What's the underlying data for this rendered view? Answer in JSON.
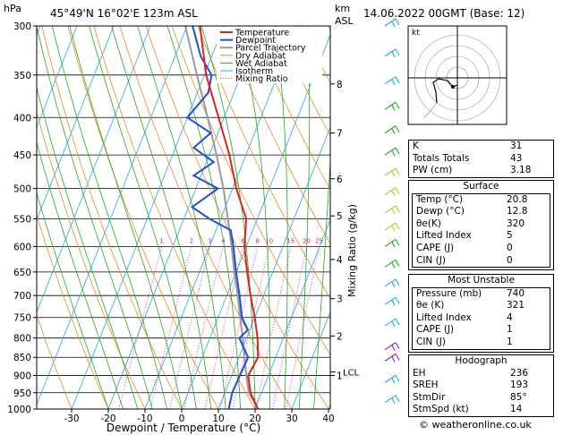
{
  "header": {
    "location": "45°49'N  16°02'E  123m  ASL",
    "datetime": "14.06.2022  00GMT  (Base: 12)",
    "hpa_label": "hPa",
    "km_label": "km",
    "asl_label": "ASL",
    "footer": "© weatheronline.co.uk"
  },
  "chart_data": {
    "type": "skew-t",
    "xlabel": "Dewpoint / Temperature (°C)",
    "ylabel_right": "Mixing Ratio (g/kg)",
    "x_ticks": [
      -30,
      -20,
      -10,
      0,
      10,
      20,
      30,
      40
    ],
    "pressure_ticks": [
      300,
      350,
      400,
      450,
      500,
      550,
      600,
      650,
      700,
      750,
      800,
      850,
      900,
      950,
      1000
    ],
    "km_ticks": [
      {
        "label": "8",
        "p": 360
      },
      {
        "label": "7",
        "p": 420
      },
      {
        "label": "6",
        "p": 485
      },
      {
        "label": "5",
        "p": 545
      },
      {
        "label": "4",
        "p": 625
      },
      {
        "label": "3",
        "p": 707
      },
      {
        "label": "2",
        "p": 795
      },
      {
        "label": "1",
        "p": 900
      }
    ],
    "lcl_label": "LCL",
    "lcl_pressure": 890,
    "mixing_ratio_labels": [
      "1",
      "2",
      "3",
      "4",
      "6",
      "8",
      "10",
      "15",
      "20",
      "25"
    ],
    "legend": [
      "Temperature",
      "Dewpoint",
      "Parcel Trajectory",
      "Dry Adiabat",
      "Wet Adiabat",
      "Isotherm",
      "Mixing Ratio"
    ],
    "colors": {
      "temperature": "#dd2222",
      "dewpoint": "#1f4fd8",
      "parcel": "#999999",
      "dry_adiabat": "#e39020",
      "wet_adiabat": "#22aa22",
      "isotherm": "#22aadd",
      "mixing_ratio": "#cc2288"
    },
    "temperature": [
      {
        "p": 1000,
        "t": 20.8
      },
      {
        "p": 950,
        "t": 17.0
      },
      {
        "p": 900,
        "t": 14.5
      },
      {
        "p": 850,
        "t": 15.2
      },
      {
        "p": 800,
        "t": 13.0
      },
      {
        "p": 750,
        "t": 10.0
      },
      {
        "p": 700,
        "t": 6.5
      },
      {
        "p": 650,
        "t": 3.0
      },
      {
        "p": 600,
        "t": -0.5
      },
      {
        "p": 550,
        "t": -3.0
      },
      {
        "p": 500,
        "t": -9.0
      },
      {
        "p": 450,
        "t": -14.5
      },
      {
        "p": 400,
        "t": -21.5
      },
      {
        "p": 350,
        "t": -29.5
      },
      {
        "p": 300,
        "t": -36.5
      }
    ],
    "dewpoint": [
      {
        "p": 1000,
        "t": 12.8
      },
      {
        "p": 950,
        "t": 12.0
      },
      {
        "p": 900,
        "t": 12.2
      },
      {
        "p": 850,
        "t": 12.5
      },
      {
        "p": 800,
        "t": 8.0
      },
      {
        "p": 780,
        "t": 9.5
      },
      {
        "p": 750,
        "t": 6.5
      },
      {
        "p": 700,
        "t": 3.5
      },
      {
        "p": 650,
        "t": 0.0
      },
      {
        "p": 600,
        "t": -3.5
      },
      {
        "p": 570,
        "t": -6.0
      },
      {
        "p": 550,
        "t": -13.0
      },
      {
        "p": 530,
        "t": -19.0
      },
      {
        "p": 500,
        "t": -14.0
      },
      {
        "p": 480,
        "t": -22.0
      },
      {
        "p": 460,
        "t": -18.0
      },
      {
        "p": 440,
        "t": -25.0
      },
      {
        "p": 420,
        "t": -22.0
      },
      {
        "p": 400,
        "t": -30.0
      },
      {
        "p": 370,
        "t": -27.0
      },
      {
        "p": 350,
        "t": -28.0
      },
      {
        "p": 330,
        "t": -33.0
      },
      {
        "p": 300,
        "t": -38.5
      }
    ],
    "parcel": [
      {
        "p": 1000,
        "t": 20.8
      },
      {
        "p": 950,
        "t": 16.5
      },
      {
        "p": 890,
        "t": 13.5
      },
      {
        "p": 850,
        "t": 11.5
      },
      {
        "p": 800,
        "t": 9.0
      },
      {
        "p": 750,
        "t": 6.0
      },
      {
        "p": 700,
        "t": 3.0
      },
      {
        "p": 650,
        "t": -0.5
      },
      {
        "p": 600,
        "t": -4.0
      },
      {
        "p": 550,
        "t": -8.0
      },
      {
        "p": 500,
        "t": -12.5
      },
      {
        "p": 450,
        "t": -18.0
      },
      {
        "p": 400,
        "t": -24.5
      },
      {
        "p": 350,
        "t": -32.0
      },
      {
        "p": 300,
        "t": -40.5
      }
    ]
  },
  "hodograph": {
    "label": "kt"
  },
  "indices": [
    {
      "label": "K",
      "value": "31"
    },
    {
      "label": "Totals Totals",
      "value": "43"
    },
    {
      "label": "PW (cm)",
      "value": "3.18"
    }
  ],
  "surface": {
    "title": "Surface",
    "rows": [
      {
        "label": "Temp (°C)",
        "value": "20.8"
      },
      {
        "label": "Dewp (°C)",
        "value": "12.8"
      },
      {
        "label": "θe(K)",
        "value": "320"
      },
      {
        "label": "Lifted Index",
        "value": "5"
      },
      {
        "label": "CAPE (J)",
        "value": "0"
      },
      {
        "label": "CIN (J)",
        "value": "0"
      }
    ]
  },
  "most_unstable": {
    "title": "Most Unstable",
    "rows": [
      {
        "label": "Pressure (mb)",
        "value": "740"
      },
      {
        "label": "θe (K)",
        "value": "321"
      },
      {
        "label": "Lifted Index",
        "value": "4"
      },
      {
        "label": "CAPE (J)",
        "value": "1"
      },
      {
        "label": "CIN (J)",
        "value": "1"
      }
    ]
  },
  "hodograph_table": {
    "title": "Hodograph",
    "rows": [
      {
        "label": "EH",
        "value": "236"
      },
      {
        "label": "SREH",
        "value": "193"
      },
      {
        "label": "StmDir",
        "value": "85°"
      },
      {
        "label": "StmSpd (kt)",
        "value": "14"
      }
    ]
  }
}
